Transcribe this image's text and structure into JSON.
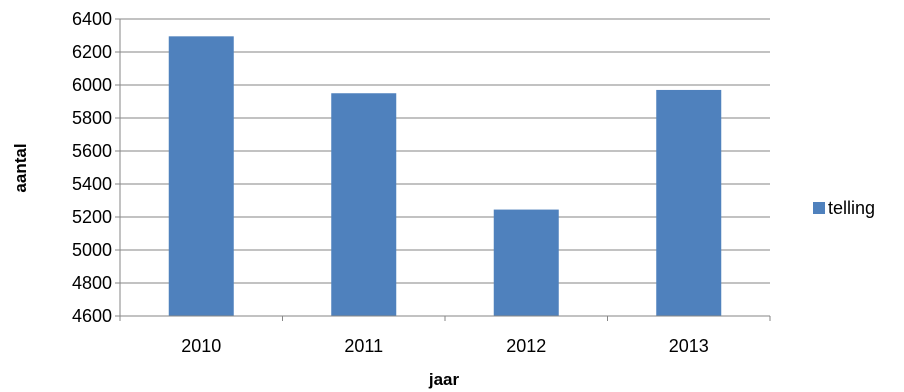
{
  "chart_data": {
    "type": "bar",
    "categories": [
      "2010",
      "2011",
      "2012",
      "2013"
    ],
    "series": [
      {
        "name": "telling",
        "values": [
          6295,
          5950,
          5245,
          5970
        ],
        "color": "#4f81bd"
      }
    ],
    "title": "",
    "xlabel": "jaar",
    "ylabel": "aantal",
    "ylim": [
      4600,
      6400
    ],
    "yticks": [
      4600,
      4800,
      5000,
      5200,
      5400,
      5600,
      5800,
      6000,
      6200,
      6400
    ],
    "grid": true,
    "legend_position": "right"
  }
}
